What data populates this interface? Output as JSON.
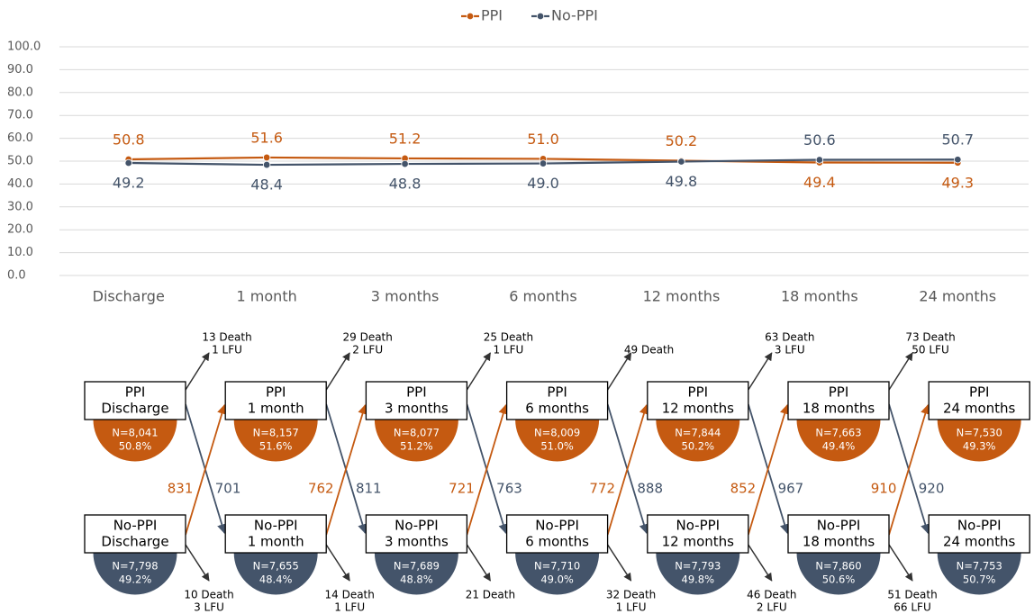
{
  "chart_data": {
    "type": "line",
    "categories": [
      "Discharge",
      "1 month",
      "3 months",
      "6 months",
      "12 months",
      "18 months",
      "24 months"
    ],
    "series": [
      {
        "name": "PPI",
        "color": "#c55a11",
        "values": [
          50.8,
          51.6,
          51.2,
          51.0,
          50.2,
          49.4,
          49.3
        ],
        "value_labels": [
          "50.8",
          "51.6",
          "51.2",
          "51.0",
          "50.2",
          "49.4",
          "49.3"
        ]
      },
      {
        "name": "No-PPI",
        "color": "#44546a",
        "values": [
          49.2,
          48.4,
          48.8,
          49.0,
          49.8,
          50.6,
          50.7
        ],
        "value_labels": [
          "49.2",
          "48.4",
          "48.8",
          "49.0",
          "49.8",
          "50.6",
          "50.7"
        ]
      }
    ],
    "ylim": [
      0,
      100
    ],
    "yticks": [
      {
        "value": 0,
        "label": "0.0"
      },
      {
        "value": 10,
        "label": "10.0"
      },
      {
        "value": 20,
        "label": "20.0"
      },
      {
        "value": 30,
        "label": "30.0"
      },
      {
        "value": 40,
        "label": "40.0"
      },
      {
        "value": 50,
        "label": "50.0"
      },
      {
        "value": 60,
        "label": "60.0"
      },
      {
        "value": 70,
        "label": "70.0"
      },
      {
        "value": 80,
        "label": "80.0"
      },
      {
        "value": 90,
        "label": "90.0"
      },
      {
        "value": 100,
        "label": "100.0"
      }
    ],
    "grid": true,
    "legend": "top"
  },
  "diagram": {
    "ppi": [
      {
        "lines": [
          "PPI",
          "Discharge"
        ],
        "n": "N=8,041",
        "pct": "50.8%"
      },
      {
        "lines": [
          "PPI",
          "1 month"
        ],
        "n": "N=8,157",
        "pct": "51.6%"
      },
      {
        "lines": [
          "PPI",
          "3 months"
        ],
        "n": "N=8,077",
        "pct": "51.2%"
      },
      {
        "lines": [
          "PPI",
          "6 months"
        ],
        "n": "N=8,009",
        "pct": "51.0%"
      },
      {
        "lines": [
          "PPI",
          "12 months"
        ],
        "n": "N=7,844",
        "pct": "50.2%"
      },
      {
        "lines": [
          "PPI",
          "18 months"
        ],
        "n": "N=7,663",
        "pct": "49.4%"
      },
      {
        "lines": [
          "PPI",
          "24 months"
        ],
        "n": "N=7,530",
        "pct": "49.3%"
      }
    ],
    "noppi": [
      {
        "lines": [
          "No-PPI",
          "Discharge"
        ],
        "n": "N=7,798",
        "pct": "49.2%"
      },
      {
        "lines": [
          "No-PPI",
          "1 month"
        ],
        "n": "N=7,655",
        "pct": "48.4%"
      },
      {
        "lines": [
          "No-PPI",
          "3 months"
        ],
        "n": "N=7,689",
        "pct": "48.8%"
      },
      {
        "lines": [
          "No-PPI",
          "6 months"
        ],
        "n": "N=7,710",
        "pct": "49.0%"
      },
      {
        "lines": [
          "No-PPI",
          "12 months"
        ],
        "n": "N=7,793",
        "pct": "49.8%"
      },
      {
        "lines": [
          "No-PPI",
          "18 months"
        ],
        "n": "N=7,860",
        "pct": "50.6%"
      },
      {
        "lines": [
          "No-PPI",
          "24 months"
        ],
        "n": "N=7,753",
        "pct": "50.7%"
      }
    ],
    "to_ppi": [
      "831",
      "762",
      "721",
      "772",
      "852",
      "910"
    ],
    "to_noppi": [
      "701",
      "811",
      "763",
      "888",
      "967",
      "920"
    ],
    "loss_ppi": [
      [
        "13 Death",
        "1 LFU"
      ],
      [
        "29 Death",
        "2 LFU"
      ],
      [
        "25 Death",
        "1 LFU"
      ],
      [
        "49 Death"
      ],
      [
        "63 Death",
        "3 LFU"
      ],
      [
        "73 Death",
        "50 LFU"
      ]
    ],
    "loss_noppi": [
      [
        "10 Death",
        "3 LFU"
      ],
      [
        "14 Death",
        "1 LFU"
      ],
      [
        "21 Death"
      ],
      [
        "32 Death",
        "1 LFU"
      ],
      [
        "46 Death",
        "2 LFU"
      ],
      [
        "51 Death",
        "66 LFU"
      ]
    ]
  }
}
